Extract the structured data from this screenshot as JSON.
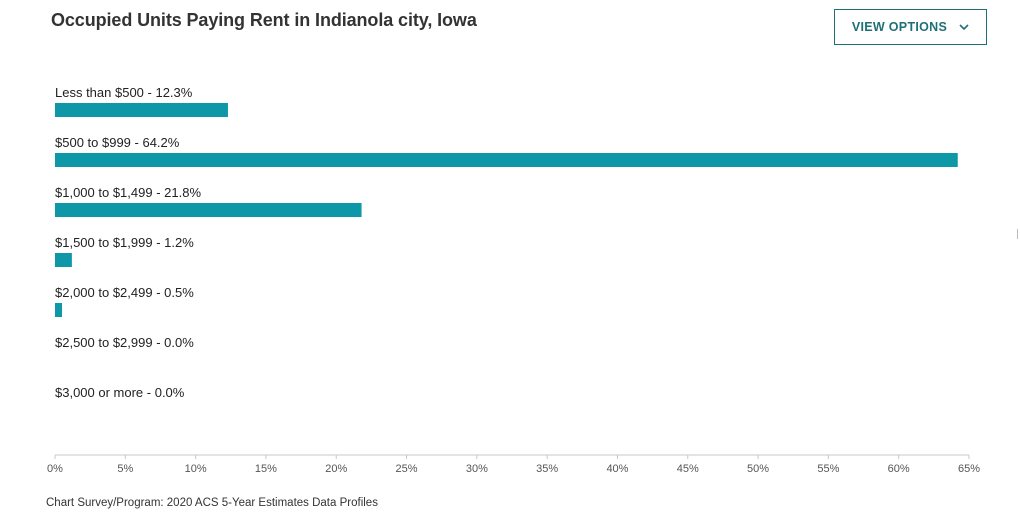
{
  "header": {
    "title": "Occupied Units Paying Rent in Indianola city, Iowa",
    "view_options_label": "VIEW OPTIONS"
  },
  "footer": {
    "source": "Chart Survey/Program: 2020 ACS 5-Year Estimates Data Profiles"
  },
  "colors": {
    "bar": "#0e97a6",
    "accent": "#1f6f78",
    "axis": "#c8c8c8",
    "label_text": "#222222",
    "tick_text": "#555555"
  },
  "chart_data": {
    "type": "bar",
    "orientation": "horizontal",
    "title": "Occupied Units Paying Rent in Indianola city, Iowa",
    "categories": [
      "Less than $500",
      "$500 to $999",
      "$1,000 to $1,499",
      "$1,500 to $1,999",
      "$2,000 to $2,499",
      "$2,500 to $2,999",
      "$3,000 or more"
    ],
    "values": [
      12.3,
      64.2,
      21.8,
      1.2,
      0.5,
      0.0,
      0.0
    ],
    "bar_labels": [
      "Less than $500 - 12.3%",
      "$500 to $999 - 64.2%",
      "$1,000 to $1,499 - 21.8%",
      "$1,500 to $1,999 - 1.2%",
      "$2,000 to $2,499 - 0.5%",
      "$2,500 to $2,999 - 0.0%",
      "$3,000 or more - 0.0%"
    ],
    "xlim": [
      0,
      65
    ],
    "xticks": [
      0,
      5,
      10,
      15,
      20,
      25,
      30,
      35,
      40,
      45,
      50,
      55,
      60,
      65
    ],
    "xtick_labels": [
      "0%",
      "5%",
      "10%",
      "15%",
      "20%",
      "25%",
      "30%",
      "35%",
      "40%",
      "45%",
      "50%",
      "55%",
      "60%",
      "65%"
    ],
    "grid": false
  }
}
